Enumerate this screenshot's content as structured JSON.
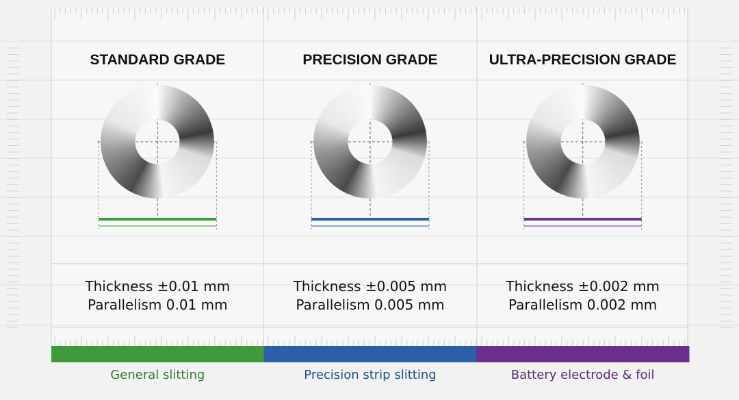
{
  "grades": [
    {
      "title": "STANDARD GRADE",
      "thickness": "Thickness ±0.01 mm",
      "parallelism": "Parallelism 0.01 mm",
      "application": "General slitting",
      "color": "#3f9a3c",
      "text_color": "#2e7d32"
    },
    {
      "title": "PRECISION GRADE",
      "thickness": "Thickness ±0.005 mm",
      "parallelism": "Parallelism 0.005 mm",
      "application": "Precision strip slitting",
      "color": "#2d5ea8",
      "text_color": "#1f4a8a"
    },
    {
      "title": "ULTRA-PRECISION GRADE",
      "thickness": "Thickness ±0.002 mm",
      "parallelism": "Parallelism 0.002 mm",
      "application": "Battery electrode & foil",
      "color": "#6b2f8c",
      "text_color": "#5a2a78"
    }
  ]
}
